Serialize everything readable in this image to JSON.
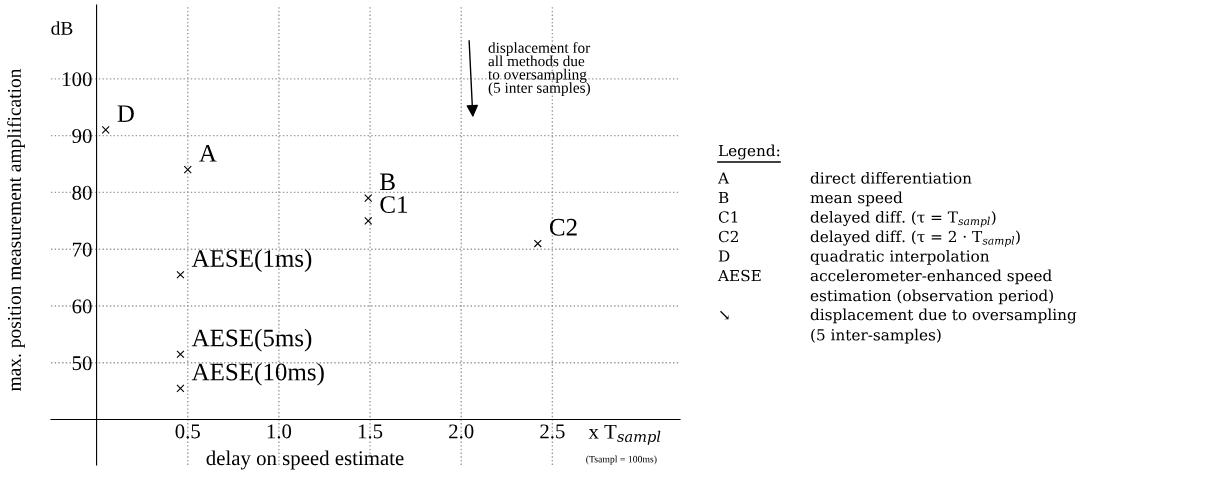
{
  "chart_data": {
    "type": "scatter",
    "xlabel": "delay on speed estimate",
    "ylabel": "max. position measurement amplification",
    "xlim": [
      -0.25,
      3.2
    ],
    "ylim": [
      32,
      113
    ],
    "xticks": [
      {
        "value": 0.5,
        "label": "0.5"
      },
      {
        "value": 1.0,
        "label": "1.0"
      },
      {
        "value": 1.5,
        "label": "1.5"
      },
      {
        "value": 2.0,
        "label": "2.0"
      },
      {
        "value": 2.5,
        "label": "2.5"
      }
    ],
    "yticks": [
      50,
      60,
      70,
      80,
      90,
      100
    ],
    "grid": true,
    "marker": "cross",
    "series": [
      {
        "name": "D",
        "color": "#000000",
        "x": [
          0.05
        ],
        "values": [
          91
        ]
      },
      {
        "name": "A",
        "color": "#000000",
        "x": [
          0.5
        ],
        "values": [
          84
        ]
      },
      {
        "name": "B",
        "color": "#000000",
        "x": [
          1.49
        ],
        "values": [
          79
        ]
      },
      {
        "name": "C1",
        "color": "#000000",
        "x": [
          1.49
        ],
        "values": [
          75
        ]
      },
      {
        "name": "C2",
        "color": "#000000",
        "x": [
          2.42
        ],
        "values": [
          71
        ]
      },
      {
        "name": "AESE(1ms)",
        "color": "#000000",
        "x": [
          0.46
        ],
        "values": [
          65.5
        ]
      },
      {
        "name": "AESE(5ms)",
        "color": "#000000",
        "x": [
          0.46
        ],
        "values": [
          51.5
        ]
      },
      {
        "name": "AESE(10ms)",
        "color": "#000000",
        "x": [
          0.46
        ],
        "values": [
          45.5
        ]
      }
    ],
    "annotations": [
      "dB",
      "x T$_{sampl}$",
      "(Tsampl = 100ms)",
      "displacement for\nall methods due\nto oversampling\n(5 inter samples)",
      "Legend:",
      "A",
      "direct differentiation",
      "B",
      "mean speed",
      "C1",
      "delayed diff. (τ = T$_{sampl}$)",
      "C2",
      "delayed diff. (τ = 2 · T$_{sampl}$)",
      "D",
      "quadratic interpolation",
      "AESE",
      "accelerometer-enhanced speed\nestimation (observation period)",
      "↘",
      "displacement due to oversampling\n(5 inter-samples)"
    ]
  }
}
